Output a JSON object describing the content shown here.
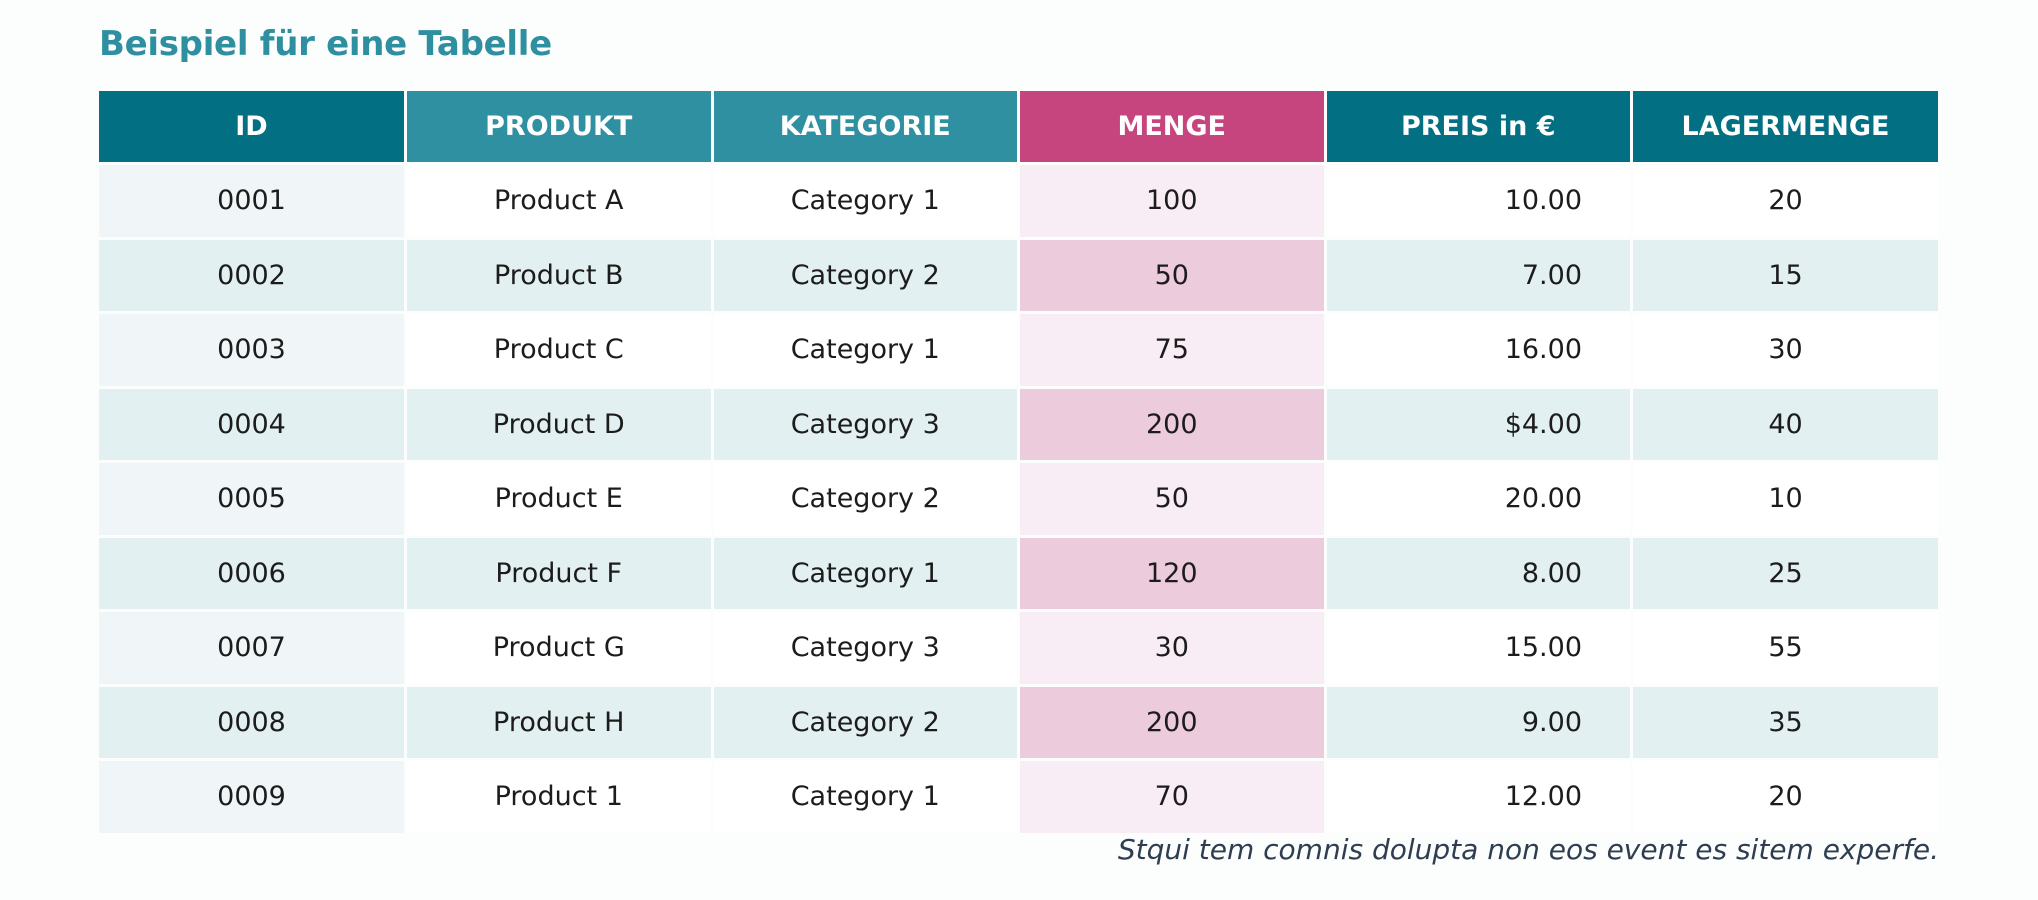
{
  "title": "Beispiel für eine Tabelle",
  "colors": {
    "title": "#2e8fa0",
    "header_dark": "#036f82",
    "header_medium": "#2e90a0",
    "header_accent": "#c7457f",
    "row_odd_id": "#f0f6f8",
    "row_odd": "#ffffff",
    "row_odd_accent": "#f8edf4",
    "row_even": "#e3f0f1",
    "row_even_accent": "#eccbdc"
  },
  "table": {
    "columns": [
      {
        "label": "ID",
        "style": "dark"
      },
      {
        "label": "PRODUKT",
        "style": "medium"
      },
      {
        "label": "KATEGORIE",
        "style": "medium"
      },
      {
        "label": "MENGE",
        "style": "accent"
      },
      {
        "label": "PREIS in €",
        "style": "dark"
      },
      {
        "label": "LAGERMENGE",
        "style": "dark"
      }
    ],
    "rows": [
      [
        "0001",
        "Product A",
        "Category 1",
        "100",
        "10.00",
        "20"
      ],
      [
        "0002",
        "Product B",
        "Category 2",
        "50",
        "7.00",
        "15"
      ],
      [
        "0003",
        "Product C",
        "Category 1",
        "75",
        "16.00",
        "30"
      ],
      [
        "0004",
        "Product D",
        "Category 3",
        "200",
        "$4.00",
        "40"
      ],
      [
        "0005",
        "Product E",
        "Category 2",
        "50",
        "20.00",
        "10"
      ],
      [
        "0006",
        "Product F",
        "Category 1",
        "120",
        "8.00",
        "25"
      ],
      [
        "0007",
        "Product G",
        "Category 3",
        "30",
        "15.00",
        "55"
      ],
      [
        "0008",
        "Product H",
        "Category 2",
        "200",
        "9.00",
        "35"
      ],
      [
        "0009",
        "Product 1",
        "Category 1",
        "70",
        "12.00",
        "20"
      ]
    ]
  },
  "caption": "Stqui tem comnis dolupta non eos event es sitem experfe."
}
